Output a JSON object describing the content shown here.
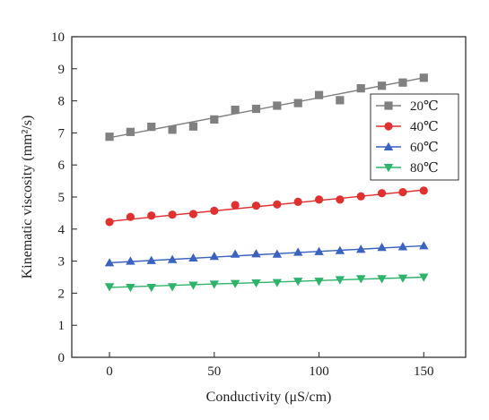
{
  "chart_data": {
    "type": "scatter",
    "title": "",
    "xlabel": "Conductivity (μS/cm)",
    "ylabel": "Kinematic viscosity (mm²/s)",
    "xlim": [
      -18,
      170
    ],
    "ylim": [
      0,
      10
    ],
    "xticks": [
      0,
      50,
      100,
      150
    ],
    "yticks": [
      0,
      1,
      2,
      3,
      4,
      5,
      6,
      7,
      8,
      9,
      10
    ],
    "grid": false,
    "legend_position": "right",
    "x": [
      0,
      10,
      20,
      30,
      40,
      50,
      60,
      70,
      80,
      90,
      100,
      110,
      120,
      130,
      140,
      150
    ],
    "series": [
      {
        "name": "20℃",
        "marker": "square",
        "color": "#808080",
        "values": [
          6.88,
          7.03,
          7.19,
          7.1,
          7.2,
          7.42,
          7.72,
          7.75,
          7.85,
          7.93,
          8.18,
          8.02,
          8.39,
          8.47,
          8.57,
          8.72
        ],
        "fit": [
          6.85,
          8.72
        ]
      },
      {
        "name": "40℃",
        "marker": "circle",
        "color": "#e03030",
        "values": [
          4.22,
          4.38,
          4.42,
          4.45,
          4.47,
          4.57,
          4.75,
          4.73,
          4.77,
          4.85,
          4.92,
          4.92,
          5.02,
          5.12,
          5.15,
          5.2
        ],
        "fit": [
          4.24,
          5.22
        ]
      },
      {
        "name": "60℃",
        "marker": "triangle-up",
        "color": "#3a62c0",
        "values": [
          2.95,
          3.0,
          3.02,
          3.05,
          3.1,
          3.15,
          3.22,
          3.23,
          3.22,
          3.28,
          3.3,
          3.33,
          3.37,
          3.43,
          3.45,
          3.48
        ],
        "fit": [
          2.95,
          3.48
        ]
      },
      {
        "name": "80℃",
        "marker": "triangle-down",
        "color": "#2eb36a",
        "values": [
          2.2,
          2.18,
          2.18,
          2.2,
          2.25,
          2.28,
          2.3,
          2.32,
          2.33,
          2.37,
          2.37,
          2.42,
          2.45,
          2.45,
          2.47,
          2.5
        ],
        "fit": [
          2.18,
          2.5
        ]
      }
    ]
  }
}
